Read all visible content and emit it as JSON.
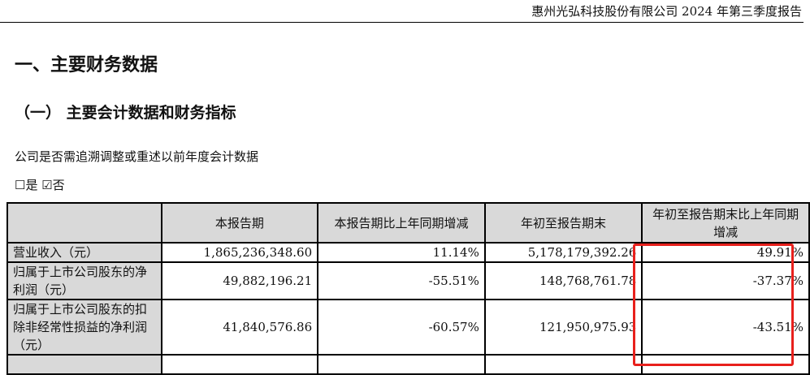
{
  "header": {
    "title": "惠州光弘科技股份有限公司 2024 年第三季度报告"
  },
  "section": {
    "title": "一、主要财务数据",
    "subtitle": "（一） 主要会计数据和财务指标",
    "question": "公司是否需追溯调整或重述以前年度会计数据",
    "options": "☐是 ☑否"
  },
  "table": {
    "headers": [
      "",
      "本报告期",
      "本报告期比上年同期增减",
      "年初至报告期末",
      "年初至报告期末比上年同期增减"
    ],
    "rows": [
      [
        "营业收入（元）",
        "1,865,236,348.60",
        "11.14%",
        "5,178,179,392.26",
        "49.91%"
      ],
      [
        "归属于上市公司股东的净利润（元）",
        "49,882,196.21",
        "-55.51%",
        "148,768,761.78",
        "-37.37%"
      ],
      [
        "归属于上市公司股东的扣除非经常性损益的净利润（元）",
        "41,840,576.86",
        "-60.57%",
        "121,950,975.93",
        "-43.51%"
      ]
    ]
  },
  "highlight_color": "#e8201c"
}
